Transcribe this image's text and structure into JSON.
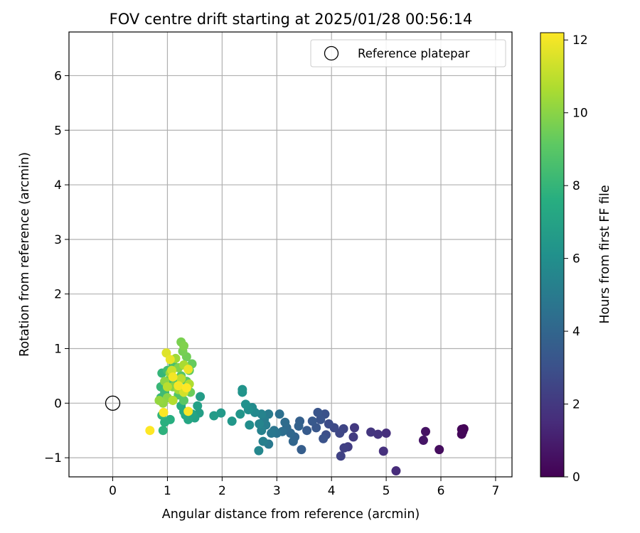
{
  "chart_data": {
    "type": "scatter",
    "title": "FOV centre drift starting at 2025/01/28 00:56:14",
    "xlabel": "Angular distance from reference (arcmin)",
    "ylabel": "Rotation from reference (arcmin)",
    "xlim": [
      -0.8,
      7.3
    ],
    "ylim": [
      -1.35,
      6.8
    ],
    "xticks": [
      0,
      1,
      2,
      3,
      4,
      5,
      6,
      7
    ],
    "yticks": [
      -1,
      0,
      1,
      2,
      3,
      4,
      5,
      6
    ],
    "grid": true,
    "legend": {
      "position": "top-right",
      "entries": [
        "Reference platepar"
      ]
    },
    "reference_point": {
      "name": "Reference platepar",
      "x": 0,
      "y": 0,
      "marker": "open-circle"
    },
    "colorbar": {
      "label": "Hours from first FF file",
      "colormap": "viridis",
      "range": [
        0,
        12.2
      ],
      "ticks": [
        0,
        2,
        4,
        6,
        8,
        10,
        12
      ]
    },
    "points": [
      {
        "x": 6.42,
        "y": -0.47,
        "t": 0.05
      },
      {
        "x": 6.38,
        "y": -0.48,
        "t": 0.1
      },
      {
        "x": 6.4,
        "y": -0.52,
        "t": 0.15
      },
      {
        "x": 6.38,
        "y": -0.57,
        "t": 0.2
      },
      {
        "x": 5.97,
        "y": -0.85,
        "t": 0.4
      },
      {
        "x": 5.72,
        "y": -0.52,
        "t": 0.6
      },
      {
        "x": 5.68,
        "y": -0.68,
        "t": 0.7
      },
      {
        "x": 5.18,
        "y": -1.24,
        "t": 1.5
      },
      {
        "x": 5.0,
        "y": -0.55,
        "t": 1.6
      },
      {
        "x": 4.95,
        "y": -0.88,
        "t": 1.7
      },
      {
        "x": 4.85,
        "y": -0.57,
        "t": 1.8
      },
      {
        "x": 4.72,
        "y": -0.53,
        "t": 1.9
      },
      {
        "x": 4.42,
        "y": -0.45,
        "t": 2.0
      },
      {
        "x": 4.4,
        "y": -0.62,
        "t": 2.1
      },
      {
        "x": 4.3,
        "y": -0.8,
        "t": 2.2
      },
      {
        "x": 4.23,
        "y": -0.82,
        "t": 2.3
      },
      {
        "x": 4.17,
        "y": -0.97,
        "t": 2.4
      },
      {
        "x": 4.22,
        "y": -0.47,
        "t": 2.5
      },
      {
        "x": 4.15,
        "y": -0.55,
        "t": 2.6
      },
      {
        "x": 4.05,
        "y": -0.45,
        "t": 2.7
      },
      {
        "x": 3.95,
        "y": -0.38,
        "t": 2.8
      },
      {
        "x": 3.9,
        "y": -0.58,
        "t": 2.9
      },
      {
        "x": 3.88,
        "y": -0.2,
        "t": 3.0
      },
      {
        "x": 3.85,
        "y": -0.65,
        "t": 3.1
      },
      {
        "x": 3.8,
        "y": -0.3,
        "t": 3.15
      },
      {
        "x": 3.75,
        "y": -0.17,
        "t": 3.2
      },
      {
        "x": 3.72,
        "y": -0.45,
        "t": 3.3
      },
      {
        "x": 3.65,
        "y": -0.33,
        "t": 3.4
      },
      {
        "x": 3.55,
        "y": -0.5,
        "t": 3.5
      },
      {
        "x": 3.45,
        "y": -0.85,
        "t": 3.6
      },
      {
        "x": 3.42,
        "y": -0.33,
        "t": 3.7
      },
      {
        "x": 3.4,
        "y": -0.42,
        "t": 3.8
      },
      {
        "x": 3.33,
        "y": -0.62,
        "t": 3.9
      },
      {
        "x": 3.3,
        "y": -0.7,
        "t": 4.0
      },
      {
        "x": 3.25,
        "y": -0.55,
        "t": 4.1
      },
      {
        "x": 3.18,
        "y": -0.45,
        "t": 4.2
      },
      {
        "x": 3.15,
        "y": -0.35,
        "t": 4.3
      },
      {
        "x": 3.1,
        "y": -0.52,
        "t": 4.4
      },
      {
        "x": 3.05,
        "y": -0.2,
        "t": 4.5
      },
      {
        "x": 3.0,
        "y": -0.55,
        "t": 4.6
      },
      {
        "x": 2.95,
        "y": -0.5,
        "t": 4.7
      },
      {
        "x": 2.9,
        "y": -0.55,
        "t": 4.8
      },
      {
        "x": 2.85,
        "y": -0.75,
        "t": 4.9
      },
      {
        "x": 2.85,
        "y": -0.2,
        "t": 5.0
      },
      {
        "x": 2.8,
        "y": -0.4,
        "t": 5.1
      },
      {
        "x": 2.77,
        "y": -0.3,
        "t": 5.15
      },
      {
        "x": 2.75,
        "y": -0.7,
        "t": 5.2
      },
      {
        "x": 2.72,
        "y": -0.5,
        "t": 5.3
      },
      {
        "x": 2.72,
        "y": -0.2,
        "t": 5.4
      },
      {
        "x": 2.68,
        "y": -0.38,
        "t": 5.5
      },
      {
        "x": 2.67,
        "y": -0.87,
        "t": 5.6
      },
      {
        "x": 2.6,
        "y": -0.17,
        "t": 5.7
      },
      {
        "x": 2.55,
        "y": -0.08,
        "t": 5.8
      },
      {
        "x": 2.5,
        "y": -0.4,
        "t": 5.9
      },
      {
        "x": 2.48,
        "y": -0.12,
        "t": 6.0
      },
      {
        "x": 2.43,
        "y": -0.02,
        "t": 6.1
      },
      {
        "x": 2.37,
        "y": 0.25,
        "t": 6.2
      },
      {
        "x": 2.37,
        "y": 0.2,
        "t": 6.25
      },
      {
        "x": 2.33,
        "y": -0.2,
        "t": 6.3
      },
      {
        "x": 2.18,
        "y": -0.33,
        "t": 6.4
      },
      {
        "x": 1.98,
        "y": -0.18,
        "t": 6.5
      },
      {
        "x": 1.85,
        "y": -0.23,
        "t": 6.6
      },
      {
        "x": 1.6,
        "y": 0.12,
        "t": 6.7
      },
      {
        "x": 1.58,
        "y": -0.18,
        "t": 6.8
      },
      {
        "x": 1.55,
        "y": -0.05,
        "t": 6.9
      },
      {
        "x": 1.5,
        "y": -0.27,
        "t": 7.0
      },
      {
        "x": 1.45,
        "y": -0.2,
        "t": 7.1
      },
      {
        "x": 1.38,
        "y": -0.3,
        "t": 7.2
      },
      {
        "x": 1.33,
        "y": -0.22,
        "t": 7.3
      },
      {
        "x": 1.3,
        "y": -0.15,
        "t": 7.4
      },
      {
        "x": 1.25,
        "y": -0.05,
        "t": 7.5
      },
      {
        "x": 1.05,
        "y": -0.3,
        "t": 7.6
      },
      {
        "x": 0.95,
        "y": -0.35,
        "t": 7.7
      },
      {
        "x": 0.92,
        "y": -0.5,
        "t": 7.8
      },
      {
        "x": 0.9,
        "y": -0.22,
        "t": 7.9
      },
      {
        "x": 0.9,
        "y": 0.55,
        "t": 8.0
      },
      {
        "x": 0.88,
        "y": 0.3,
        "t": 8.1
      },
      {
        "x": 0.88,
        "y": 0.1,
        "t": 8.2
      },
      {
        "x": 0.95,
        "y": 0.2,
        "t": 8.3
      },
      {
        "x": 1.0,
        "y": 0.6,
        "t": 8.4
      },
      {
        "x": 1.05,
        "y": 0.45,
        "t": 8.5
      },
      {
        "x": 1.1,
        "y": 0.7,
        "t": 8.6
      },
      {
        "x": 1.15,
        "y": 0.35,
        "t": 8.7
      },
      {
        "x": 1.2,
        "y": 0.15,
        "t": 8.8
      },
      {
        "x": 1.25,
        "y": 0.5,
        "t": 8.9
      },
      {
        "x": 1.3,
        "y": 0.05,
        "t": 9.0
      },
      {
        "x": 1.35,
        "y": 0.4,
        "t": 9.1
      },
      {
        "x": 1.4,
        "y": 0.6,
        "t": 9.2
      },
      {
        "x": 1.45,
        "y": 0.72,
        "t": 9.3
      },
      {
        "x": 1.42,
        "y": 0.2,
        "t": 9.4
      },
      {
        "x": 1.35,
        "y": 0.85,
        "t": 9.5
      },
      {
        "x": 1.28,
        "y": 0.95,
        "t": 9.6
      },
      {
        "x": 1.25,
        "y": 1.12,
        "t": 9.7
      },
      {
        "x": 1.3,
        "y": 1.05,
        "t": 9.8
      },
      {
        "x": 1.2,
        "y": 0.65,
        "t": 9.85
      },
      {
        "x": 1.1,
        "y": 0.3,
        "t": 9.9
      },
      {
        "x": 1.0,
        "y": 0.1,
        "t": 10.0
      },
      {
        "x": 0.95,
        "y": 0.4,
        "t": 10.05
      },
      {
        "x": 0.92,
        "y": 0.0,
        "t": 10.1
      },
      {
        "x": 0.85,
        "y": 0.05,
        "t": 10.2
      },
      {
        "x": 1.05,
        "y": 0.55,
        "t": 10.3
      },
      {
        "x": 1.15,
        "y": 0.82,
        "t": 10.4
      },
      {
        "x": 1.2,
        "y": 0.25,
        "t": 10.5
      },
      {
        "x": 1.3,
        "y": 0.7,
        "t": 10.6
      },
      {
        "x": 1.4,
        "y": 0.35,
        "t": 10.7
      },
      {
        "x": 1.1,
        "y": 0.05,
        "t": 10.8
      },
      {
        "x": 1.0,
        "y": 0.3,
        "t": 10.9
      },
      {
        "x": 1.25,
        "y": 0.45,
        "t": 11.0
      },
      {
        "x": 1.08,
        "y": 0.6,
        "t": 11.2
      },
      {
        "x": 1.3,
        "y": 0.2,
        "t": 11.4
      },
      {
        "x": 0.98,
        "y": 0.92,
        "t": 11.6
      },
      {
        "x": 1.05,
        "y": 0.8,
        "t": 11.8
      },
      {
        "x": 1.38,
        "y": 0.62,
        "t": 11.9
      },
      {
        "x": 1.1,
        "y": 0.48,
        "t": 12.0
      },
      {
        "x": 1.2,
        "y": 0.32,
        "t": 12.05
      },
      {
        "x": 1.38,
        "y": -0.15,
        "t": 12.1
      },
      {
        "x": 0.93,
        "y": -0.17,
        "t": 12.15
      },
      {
        "x": 0.68,
        "y": -0.5,
        "t": 12.2
      },
      {
        "x": 1.35,
        "y": 0.28,
        "t": 12.2
      }
    ]
  }
}
